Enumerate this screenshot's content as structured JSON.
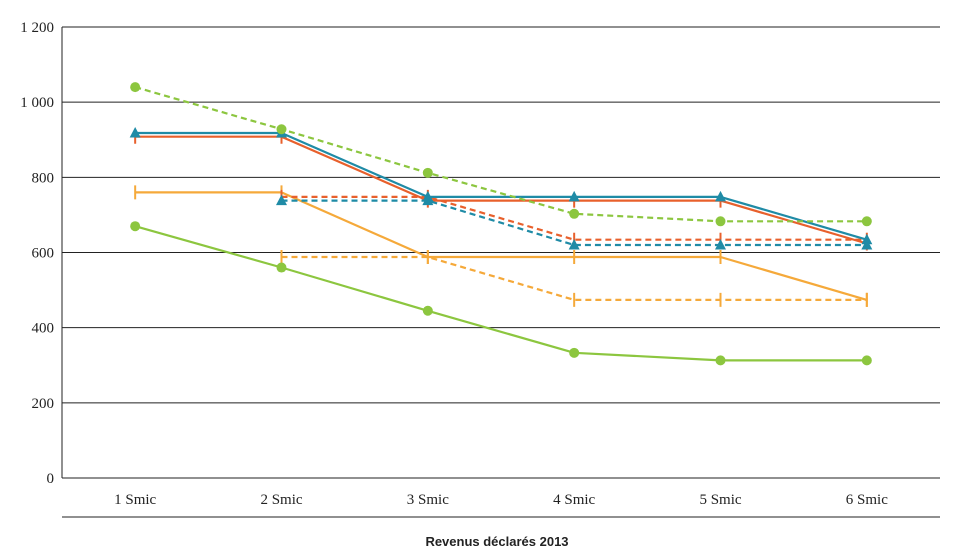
{
  "chart_data": {
    "type": "line",
    "title": "",
    "xlabel": "Revenus déclarés 2013",
    "ylabel": "",
    "categories": [
      "1 Smic",
      "2 Smic",
      "3 Smic",
      "4 Smic",
      "5 Smic",
      "6 Smic"
    ],
    "ylim": [
      0,
      1200
    ],
    "yticks": [
      0,
      200,
      400,
      600,
      800,
      1000,
      1200
    ],
    "ytick_labels": [
      "0",
      "200",
      "400",
      "600",
      "800",
      "1 000",
      "1 200"
    ],
    "grid": "horizontal",
    "series": [
      {
        "color": "#f5a93a",
        "dash": false,
        "marker": "bar",
        "values": [
          760,
          760,
          588,
          588,
          588,
          474
        ]
      },
      {
        "color": "#f5a93a",
        "dash": true,
        "marker": "bar",
        "values": [
          null,
          588,
          588,
          474,
          474,
          474
        ]
      },
      {
        "color": "#e8602c",
        "dash": false,
        "marker": "bar",
        "values": [
          908,
          908,
          738,
          738,
          738,
          624
        ]
      },
      {
        "color": "#e8602c",
        "dash": true,
        "marker": "bar",
        "values": [
          null,
          748,
          748,
          634,
          634,
          634
        ]
      },
      {
        "color": "#1f8ba6",
        "dash": false,
        "marker": "triangle",
        "values": [
          918,
          918,
          748,
          748,
          748,
          634
        ]
      },
      {
        "color": "#1f8ba6",
        "dash": true,
        "marker": "triangle",
        "values": [
          null,
          738,
          738,
          620,
          620,
          620
        ]
      },
      {
        "color": "#8cc63f",
        "dash": false,
        "marker": "circle",
        "values": [
          670,
          560,
          445,
          333,
          313,
          313
        ]
      },
      {
        "color": "#8cc63f",
        "dash": true,
        "marker": "circle",
        "values": [
          1040,
          928,
          812,
          703,
          683,
          683
        ]
      }
    ]
  }
}
